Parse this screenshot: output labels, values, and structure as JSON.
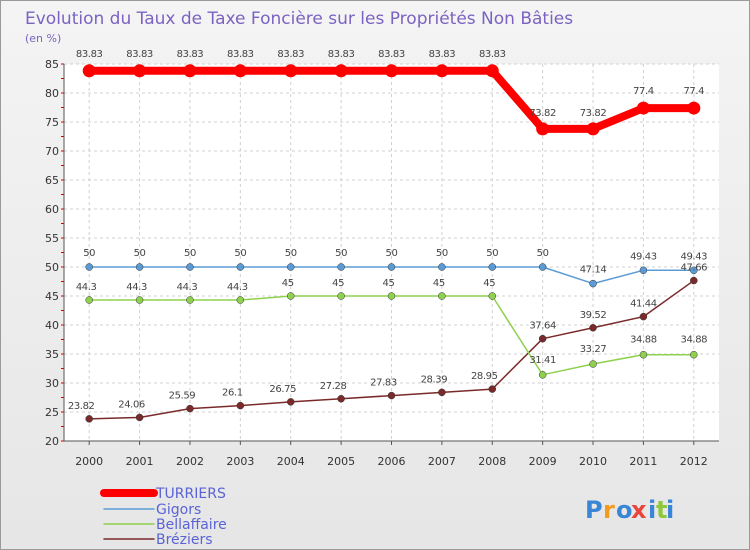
{
  "chart_data": {
    "type": "line",
    "title": "Evolution du Taux de Taxe Foncière sur les Propriétés Non Bâties",
    "subtitle": "(en %)",
    "x": [
      "2000",
      "2001",
      "2002",
      "2003",
      "2004",
      "2005",
      "2006",
      "2007",
      "2008",
      "2009",
      "2010",
      "2011",
      "2012"
    ],
    "ylim": [
      20,
      85
    ],
    "yticks": [
      20,
      25,
      30,
      35,
      40,
      45,
      50,
      55,
      60,
      65,
      70,
      75,
      80,
      85
    ],
    "grid": true,
    "legend_position": "bottom-left",
    "series": [
      {
        "name": "TURRIERS",
        "color": "#ff0000",
        "values": [
          83.83,
          83.83,
          83.83,
          83.83,
          83.83,
          83.83,
          83.83,
          83.83,
          83.83,
          73.82,
          73.82,
          77.4,
          77.4
        ],
        "labels": [
          "83.83",
          "83.83",
          "83.83",
          "83.83",
          "83.83",
          "83.83",
          "83.83",
          "83.83",
          "83.83",
          "73.82",
          "73.82",
          "77.4",
          "77.4"
        ]
      },
      {
        "name": "Gigors",
        "color": "#5b9bd5",
        "values": [
          50,
          50,
          50,
          50,
          50,
          50,
          50,
          50,
          50,
          50,
          47.14,
          49.43,
          49.43
        ],
        "labels": [
          "50",
          "50",
          "50",
          "50",
          "50",
          "50",
          "50",
          "50",
          "50",
          "50",
          "47.14",
          "49.43",
          "49.43"
        ]
      },
      {
        "name": "Bellaffaire",
        "color": "#8fd14f",
        "values": [
          44.3,
          44.3,
          44.3,
          44.3,
          45,
          45,
          45,
          45,
          45,
          31.41,
          33.27,
          34.88,
          34.88
        ],
        "labels": [
          "44.3",
          "44.3",
          "44.3",
          "44.3",
          "45",
          "45",
          "45",
          "45",
          "45",
          "31.41",
          "33.27",
          "34.88",
          "34.88"
        ]
      },
      {
        "name": "Bréziers",
        "color": "#7a2a2a",
        "values": [
          23.82,
          24.06,
          25.59,
          26.1,
          26.75,
          27.28,
          27.83,
          28.39,
          28.95,
          37.64,
          39.52,
          41.44,
          47.66
        ],
        "labels": [
          "23.82",
          "24.06",
          "25.59",
          "26.1",
          "26.75",
          "27.28",
          "27.83",
          "28.39",
          "28.95",
          "37.64",
          "39.52",
          "41.44",
          "47.66"
        ]
      }
    ]
  },
  "brand": {
    "letters": [
      "P",
      "r",
      "o",
      "x",
      "i",
      "t",
      "i"
    ],
    "colors": [
      "#3a86d6",
      "#f29b1d",
      "#3a86d6",
      "#e8453c",
      "#3a86d6",
      "#8fc93a",
      "#3a86d6"
    ]
  }
}
